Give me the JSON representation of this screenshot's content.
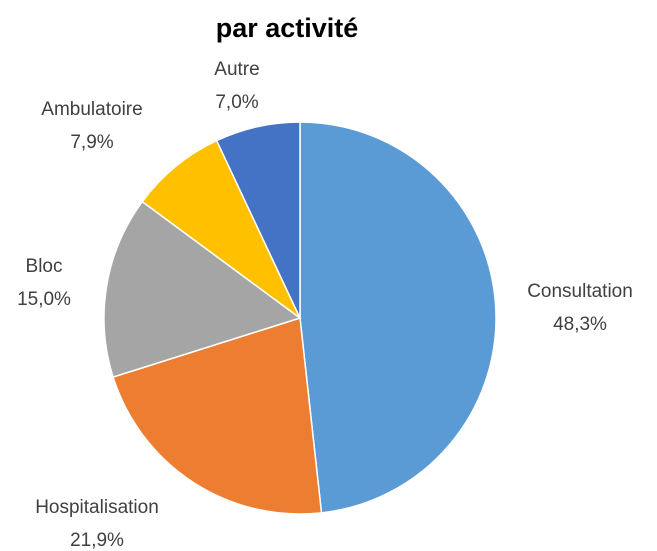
{
  "chart_data": {
    "type": "pie",
    "title": "par activité",
    "categories": [
      "Consultation",
      "Hospitalisation",
      "Bloc",
      "Ambulatoire",
      "Autre"
    ],
    "values": [
      48.3,
      21.9,
      15.0,
      7.9,
      7.0
    ],
    "value_labels": [
      "48,3%",
      "21,9%",
      "15,0%",
      "7,9%",
      "7,0%"
    ],
    "colors": [
      "#5b9bd5",
      "#ed7d31",
      "#a5a5a5",
      "#ffc000",
      "#4472c4"
    ]
  }
}
